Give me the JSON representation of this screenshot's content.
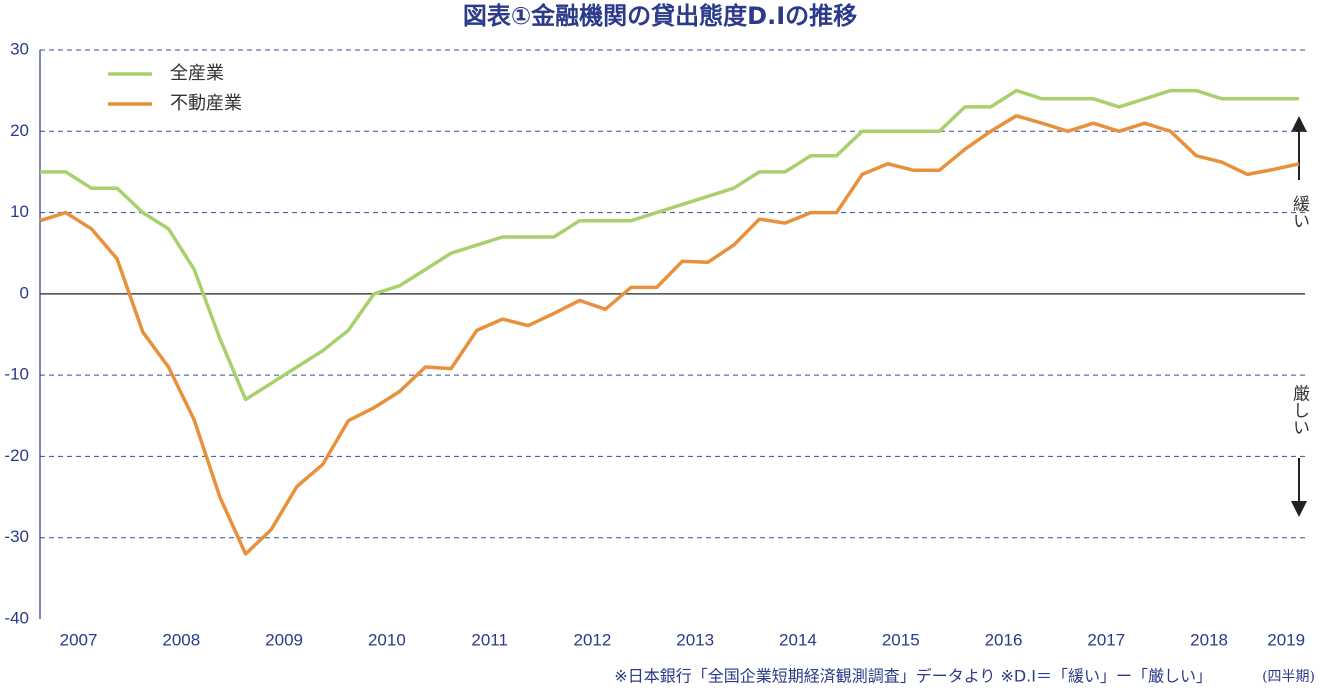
{
  "chart_data": {
    "type": "line",
    "title": "図表①金融機関の貸出態度D.Iの推移",
    "categories": [
      null,
      "2007",
      null,
      null,
      null,
      "2008",
      null,
      null,
      null,
      "2009",
      null,
      null,
      null,
      "2010",
      null,
      null,
      null,
      "2011",
      null,
      null,
      null,
      "2012",
      null,
      null,
      null,
      "2013",
      null,
      null,
      null,
      "2014",
      null,
      null,
      null,
      "2015",
      null,
      null,
      null,
      "2016",
      null,
      null,
      null,
      "2017",
      null,
      null,
      null,
      "2018",
      null,
      null,
      "2019",
      null
    ],
    "series": [
      {
        "name": "全産業",
        "color": "#a8d06c",
        "values": [
          15,
          15,
          13,
          13,
          10,
          8,
          3,
          -5.5,
          -13,
          -11,
          -9,
          -7,
          -4.5,
          0,
          1,
          3,
          5,
          6,
          7,
          7,
          7,
          9,
          9,
          9,
          10,
          11,
          12,
          13,
          15,
          15,
          17,
          17,
          20,
          20,
          20,
          20,
          23,
          23,
          25,
          24,
          24,
          24,
          23,
          24,
          25,
          25,
          24,
          24,
          24,
          24
        ]
      },
      {
        "name": "不動産業",
        "color": "#e8913a",
        "values": [
          9,
          10,
          8,
          4.3,
          -4.7,
          -9,
          -15.5,
          -25,
          -32,
          -29,
          -23.7,
          -21,
          -15.6,
          -14,
          -12,
          -9,
          -9.2,
          -4.5,
          -3.1,
          -3.9,
          -2.4,
          -0.8,
          -1.9,
          0.8,
          0.8,
          4,
          3.9,
          6,
          9.2,
          8.7,
          10,
          10,
          14.7,
          16,
          15.2,
          15.2,
          17.8,
          20,
          21.9,
          21,
          20,
          21,
          20,
          21,
          20,
          17,
          16.2,
          14.7,
          15.3,
          16
        ]
      }
    ],
    "ylim": [
      -40,
      30
    ],
    "yticks": [
      -40,
      -30,
      -20,
      -10,
      0,
      10,
      20,
      30
    ],
    "grid": true,
    "annotations": {
      "loose": "緩い",
      "strict": "厳しい",
      "unit": "(四半期)"
    },
    "footnote": "※日本銀行「全国企業短期経済観測調査」データより ※D.I＝「緩い」ー「厳しい」"
  }
}
